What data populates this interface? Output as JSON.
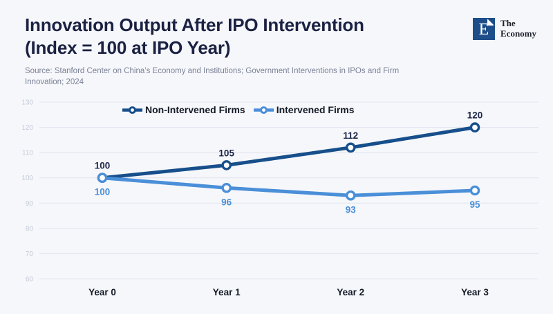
{
  "page": {
    "background": "#f6f7fb"
  },
  "header": {
    "title_line1": "Innovation Output After IPO Intervention",
    "title_line2": "(Index = 100 at IPO Year)",
    "source": "Source: Stanford Center on China’s Economy and Institutions; Government Interventions in IPOs and Firm Innovation; 2024"
  },
  "logo": {
    "mark_letter": "E",
    "text_line1": "The",
    "text_line2": "Economy"
  },
  "legend": {
    "items": [
      {
        "label": "Non-Intervened Firms",
        "color": "#174f8b"
      },
      {
        "label": "Intervened Firms",
        "color": "#4a8fd8"
      }
    ]
  },
  "chart_data": {
    "type": "line",
    "title": "Innovation Output After IPO Intervention (Index = 100 at IPO Year)",
    "categories": [
      "Year 0",
      "Year 1",
      "Year 2",
      "Year 3"
    ],
    "series": [
      {
        "name": "Non-Intervened Firms",
        "values": [
          100,
          105,
          112,
          120
        ],
        "color": "#174f8b",
        "label_color": "#1b2547",
        "label_position": "above"
      },
      {
        "name": "Intervened Firms",
        "values": [
          100,
          96,
          93,
          95
        ],
        "color": "#4a8fd8",
        "label_color": "#4a8fd8",
        "label_position": "below"
      }
    ],
    "ylim": [
      60,
      130
    ],
    "ytick_step": 10,
    "yticks": [
      60,
      70,
      80,
      90,
      100,
      110,
      120,
      130
    ],
    "grid": "horizontal",
    "legend_position": "top-center-inside",
    "marker": "open-circle",
    "data_labels": true
  },
  "style": {
    "grid_color": "#e0e4ee",
    "ytick_color": "#c4cbd9",
    "xlabel_color": "#141a26",
    "marker_fill": "#ffffff",
    "logo_navy": "#1d4e8a"
  }
}
